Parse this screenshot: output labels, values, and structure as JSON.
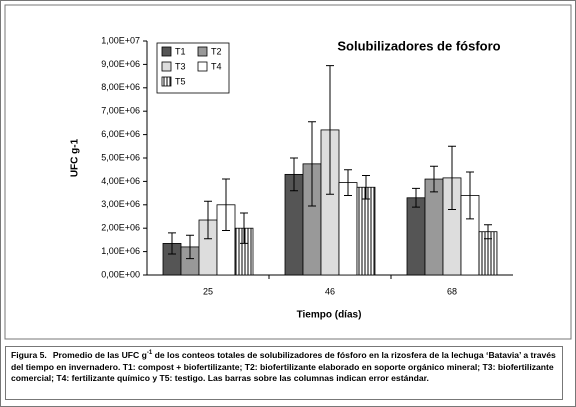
{
  "chart_data": {
    "type": "bar",
    "title": "Solubilizadores de fósforo",
    "x_label": "Tiempo (días)",
    "y_label": "UFC g-1",
    "categories": [
      "25",
      "46",
      "68"
    ],
    "series": [
      {
        "name": "T1",
        "color": "#555555",
        "values": [
          1350000,
          4300000,
          3300000
        ],
        "errors": [
          450000,
          700000,
          400000
        ]
      },
      {
        "name": "T2",
        "color": "#999999",
        "values": [
          1200000,
          4750000,
          4100000
        ],
        "errors": [
          500000,
          1800000,
          550000
        ]
      },
      {
        "name": "T3",
        "color": "#dddddd",
        "values": [
          2350000,
          6200000,
          4150000
        ],
        "errors": [
          800000,
          2750000,
          1350000
        ]
      },
      {
        "name": "T4",
        "color": "#ffffff",
        "values": [
          3000000,
          3950000,
          3400000
        ],
        "errors": [
          1100000,
          550000,
          1000000
        ]
      },
      {
        "name": "T5",
        "color": "#ffffff",
        "hatch": "vertical",
        "values": [
          2000000,
          3750000,
          1850000
        ],
        "errors": [
          650000,
          500000,
          300000
        ]
      }
    ],
    "ylim": [
      0,
      10000000
    ],
    "yticks": [
      {
        "value": 0,
        "label": "0,00E+00"
      },
      {
        "value": 1000000,
        "label": "1,00E+06"
      },
      {
        "value": 2000000,
        "label": "2,00E+06"
      },
      {
        "value": 3000000,
        "label": "3,00E+06"
      },
      {
        "value": 4000000,
        "label": "4,00E+06"
      },
      {
        "value": 5000000,
        "label": "5,00E+06"
      },
      {
        "value": 6000000,
        "label": "6,00E+06"
      },
      {
        "value": 7000000,
        "label": "7,00E+06"
      },
      {
        "value": 8000000,
        "label": "8,00E+06"
      },
      {
        "value": 9000000,
        "label": "9,00E+06"
      },
      {
        "value": 10000000,
        "label": "1,00E+07"
      }
    ],
    "legend": "top-left"
  },
  "caption": {
    "label": "Figura 5.",
    "parts": [
      "Promedio de las UFC g",
      "-1",
      " de los conteos totales de solubilizadores de fósforo en la rizosfera de la lechuga ‘Batavia’ a través del tiempo en invernadero. T1: compost + biofertilizante; T2: biofertilizante elaborado en soporte orgánico mineral; T3: biofertilizante comercial; T4: fertilizante químico y T5:  testigo. Las barras sobre las columnas indican error estándar."
    ]
  }
}
